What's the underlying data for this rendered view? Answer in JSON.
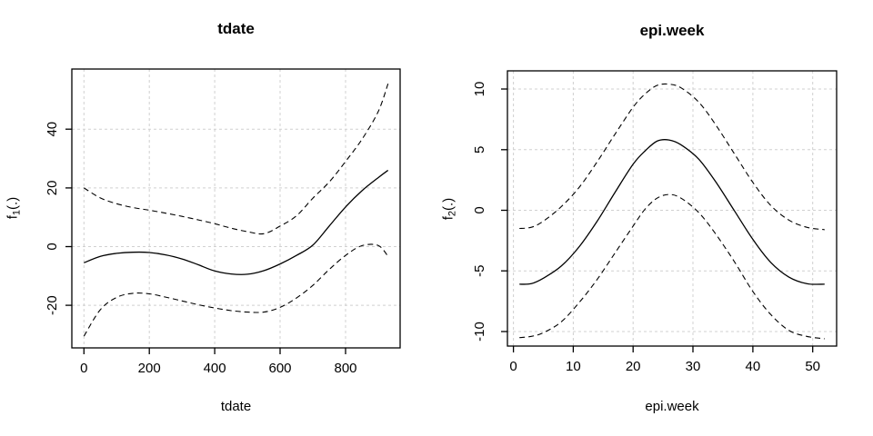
{
  "figure": {
    "background": "#ffffff"
  },
  "colors": {
    "line": "#000000",
    "grid": "#d0d0d0",
    "text": "#000000",
    "box": "#000000"
  },
  "chart_data": [
    {
      "type": "line",
      "title": "tdate",
      "xlabel": "tdate",
      "ylabel": {
        "base": "f",
        "sub": "1",
        "args": "(.)"
      },
      "xlim": [
        -37,
        967
      ],
      "ylim": [
        -34.5,
        60.5
      ],
      "xticks": [
        0,
        200,
        400,
        600,
        800
      ],
      "yticks": [
        -20,
        0,
        20,
        40
      ],
      "grid": true,
      "legend": null,
      "series": [
        {
          "name": "fit-line",
          "style": "solid",
          "x": [
            0,
            50,
            100,
            150,
            200,
            250,
            300,
            350,
            400,
            450,
            500,
            550,
            600,
            650,
            700,
            750,
            800,
            850,
            900,
            930
          ],
          "y": [
            -5.5,
            -3.3,
            -2.3,
            -1.9,
            -2.0,
            -2.8,
            -4.2,
            -6.2,
            -8.3,
            -9.3,
            -9.4,
            -8.2,
            -5.9,
            -3.0,
            0.5,
            7.0,
            13.5,
            19.0,
            23.5,
            26.0
          ]
        },
        {
          "name": "upper-ci-line",
          "style": "dashed",
          "x": [
            0,
            50,
            100,
            150,
            200,
            250,
            300,
            350,
            400,
            450,
            500,
            550,
            600,
            650,
            700,
            750,
            800,
            850,
            900,
            930
          ],
          "y": [
            20.0,
            16.6,
            14.6,
            13.3,
            12.4,
            11.4,
            10.3,
            9.1,
            7.8,
            6.3,
            5.1,
            4.4,
            7.0,
            10.5,
            16.5,
            22.0,
            29.0,
            36.5,
            46.0,
            55.5
          ]
        },
        {
          "name": "lower-ci-line",
          "style": "dashed",
          "x": [
            0,
            50,
            100,
            150,
            200,
            250,
            300,
            350,
            400,
            450,
            500,
            550,
            600,
            650,
            700,
            750,
            800,
            850,
            900,
            930
          ],
          "y": [
            -30.5,
            -21.5,
            -17.3,
            -15.9,
            -16.1,
            -17.2,
            -18.5,
            -19.8,
            -20.9,
            -21.8,
            -22.3,
            -22.3,
            -20.7,
            -17.5,
            -13.2,
            -7.8,
            -3.0,
            0.3,
            0.4,
            -3.3
          ]
        }
      ]
    },
    {
      "type": "line",
      "title": "epi.week",
      "xlabel": "epi.week",
      "ylabel": {
        "base": "f",
        "sub": "2",
        "args": "(.)"
      },
      "xlim": [
        -1,
        54
      ],
      "ylim": [
        -11.2,
        11.5
      ],
      "xticks": [
        0,
        10,
        20,
        30,
        40,
        50
      ],
      "yticks": [
        -10,
        -5,
        0,
        5,
        10
      ],
      "grid": true,
      "legend": null,
      "series": [
        {
          "name": "fit-line",
          "style": "solid",
          "x": [
            1,
            3,
            5,
            8,
            11,
            14,
            17,
            20,
            22,
            24,
            26,
            28,
            31,
            34,
            37,
            40,
            43,
            46,
            49,
            52
          ],
          "y": [
            -6.1,
            -6.05,
            -5.6,
            -4.6,
            -3.0,
            -0.9,
            1.5,
            3.8,
            4.9,
            5.7,
            5.8,
            5.4,
            4.2,
            2.2,
            -0.1,
            -2.4,
            -4.3,
            -5.5,
            -6.05,
            -6.1
          ]
        },
        {
          "name": "upper-ci-line",
          "style": "dashed",
          "x": [
            1,
            3,
            5,
            8,
            11,
            14,
            17,
            20,
            22,
            24,
            26,
            28,
            31,
            34,
            37,
            40,
            43,
            46,
            49,
            52
          ],
          "y": [
            -1.5,
            -1.4,
            -0.9,
            0.3,
            1.9,
            4.0,
            6.3,
            8.5,
            9.6,
            10.3,
            10.4,
            10.1,
            8.9,
            6.9,
            4.6,
            2.3,
            0.4,
            -0.8,
            -1.4,
            -1.6
          ]
        },
        {
          "name": "lower-ci-line",
          "style": "dashed",
          "x": [
            1,
            3,
            5,
            8,
            11,
            14,
            17,
            20,
            22,
            24,
            26,
            28,
            31,
            34,
            37,
            40,
            43,
            46,
            49,
            52
          ],
          "y": [
            -10.5,
            -10.4,
            -10.1,
            -9.2,
            -7.6,
            -5.7,
            -3.5,
            -1.3,
            0.1,
            1.0,
            1.3,
            1.0,
            -0.2,
            -2.1,
            -4.3,
            -6.7,
            -8.6,
            -9.9,
            -10.4,
            -10.6
          ]
        }
      ]
    }
  ]
}
